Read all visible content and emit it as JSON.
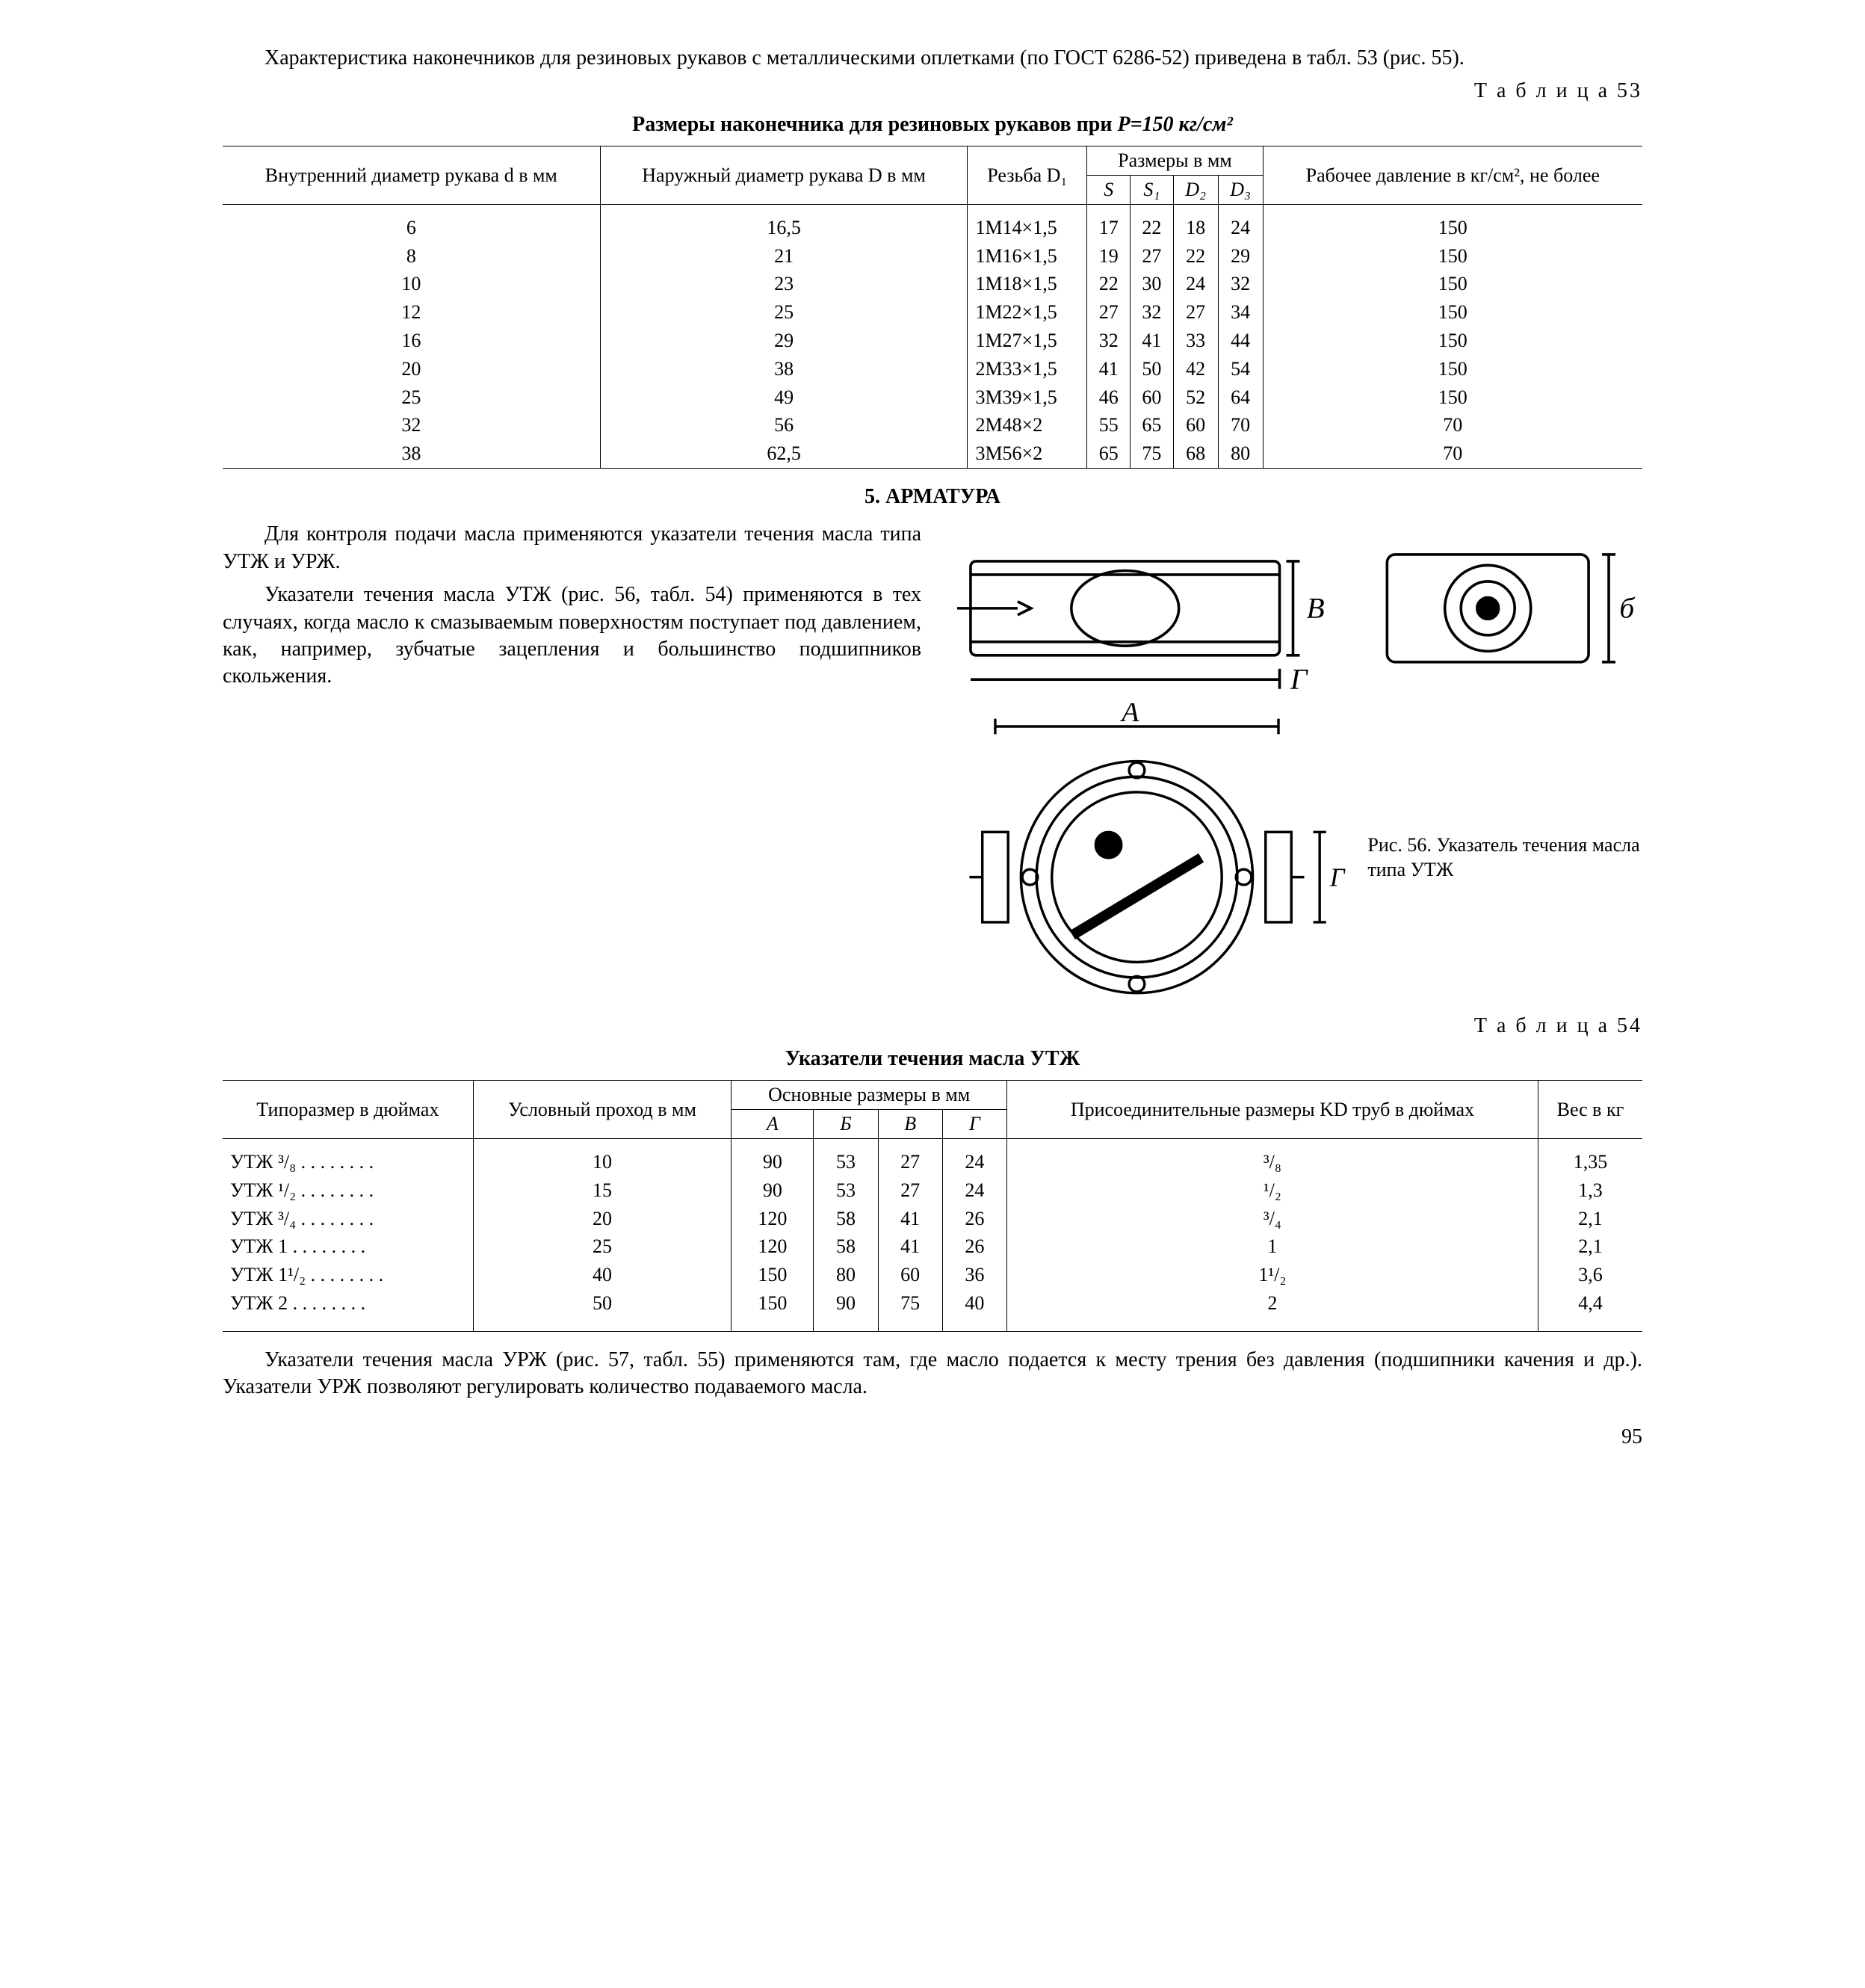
{
  "intro_para": "Характеристика наконечников для резиновых рукавов с металлическими оплетками (по ГОСТ 6286-52) приведена в табл. 53 (рис. 55).",
  "table53_label": "Т а б л и ц а 53",
  "table53_title_a": "Размеры наконечника для резиновых рукавов при ",
  "table53_title_b": "P=150 кг/см²",
  "t53": {
    "h_d": "Внутренний диаметр ру­кава d в мм",
    "h_D": "Наружный диаметр рукава D в мм",
    "h_thread": "Резьба D₁",
    "h_dims": "Размеры в мм",
    "h_S": "S",
    "h_S1": "S₁",
    "h_D2": "D₂",
    "h_D3": "D₃",
    "h_press": "Рабочее дав­ление в кг/см², не более",
    "rows": [
      [
        "6",
        "16,5",
        "1М14×1,5",
        "17",
        "22",
        "18",
        "24",
        "150"
      ],
      [
        "8",
        "21",
        "1М16×1,5",
        "19",
        "27",
        "22",
        "29",
        "150"
      ],
      [
        "10",
        "23",
        "1М18×1,5",
        "22",
        "30",
        "24",
        "32",
        "150"
      ],
      [
        "12",
        "25",
        "1М22×1,5",
        "27",
        "32",
        "27",
        "34",
        "150"
      ],
      [
        "16",
        "29",
        "1М27×1,5",
        "32",
        "41",
        "33",
        "44",
        "150"
      ],
      [
        "20",
        "38",
        "2М33×1,5",
        "41",
        "50",
        "42",
        "54",
        "150"
      ],
      [
        "25",
        "49",
        "3М39×1,5",
        "46",
        "60",
        "52",
        "64",
        "150"
      ],
      [
        "32",
        "56",
        "2М48×2",
        "55",
        "65",
        "60",
        "70",
        "70"
      ],
      [
        "38",
        "62,5",
        "3М56×2",
        "65",
        "75",
        "68",
        "80",
        "70"
      ]
    ]
  },
  "section5": "5. АРМАТУРА",
  "para5a": "Для контроля подачи масла применяются указатели тече­ния масла типа УТЖ и УРЖ.",
  "para5b": "Указатели течения масла УТЖ (рис. 56, табл. 54) приме­няются в тех случаях, когда масло к смазываемым поверх­ностям поступает под давлени­ем, как, например, зубчатые за­цепления и большинство под­шипников скольжения.",
  "fig56_caption": "Рис. 56. Указатель течения масла ти­па УТЖ",
  "fig56_labels": {
    "A": "А",
    "B": "В",
    "G": "Г",
    "b": "б"
  },
  "table54_label": "Т а б л и ц а 54",
  "table54_title": "Указатели течения масла УТЖ",
  "t54": {
    "h_type": "Типоразмер в дюймах",
    "h_pass": "Условный проход в мм",
    "h_dims": "Основные размеры в мм",
    "h_A": "А",
    "h_B": "Б",
    "h_V": "В",
    "h_G": "Г",
    "h_kd": "Присоеди­нительные размеры KD труб в дюймах",
    "h_wt": "Вес в кг",
    "rows": [
      [
        "УТЖ ³/₈",
        "10",
        "90",
        "53",
        "27",
        "24",
        "³/₈",
        "1,35"
      ],
      [
        "УТЖ ¹/₂",
        "15",
        "90",
        "53",
        "27",
        "24",
        "¹/₂",
        "1,3"
      ],
      [
        "УТЖ ³/₄",
        "20",
        "120",
        "58",
        "41",
        "26",
        "³/₄",
        "2,1"
      ],
      [
        "УТЖ 1",
        "25",
        "120",
        "58",
        "41",
        "26",
        "1",
        "2,1"
      ],
      [
        "УТЖ 1¹/₂",
        "40",
        "150",
        "80",
        "60",
        "36",
        "1¹/₂",
        "3,6"
      ],
      [
        "УТЖ 2",
        "50",
        "150",
        "90",
        "75",
        "40",
        "2",
        "4,4"
      ]
    ]
  },
  "para_last": "Указатели течения масла УРЖ (рис. 57, табл. 55) применяются там, где масло подается к месту трения без давления (подшипники качения и др.). Указатели УРЖ позволяют регулировать количест­во подаваемого масла.",
  "page_number": "95"
}
